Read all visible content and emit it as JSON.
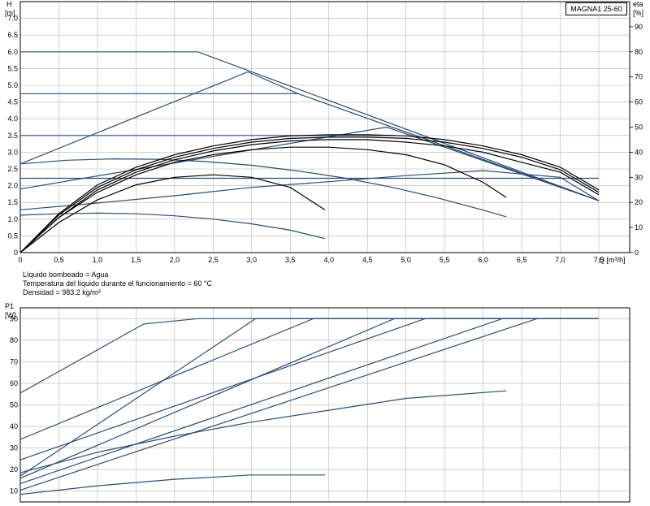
{
  "model": "MAGNA1 25-60",
  "info": [
    "Líquido bombeado = Agua",
    "Temperatura del líquido durante el funcionamiento = 60 °C",
    "Densidad = 983.2 kg/m³"
  ],
  "colors": {
    "curve": "#2a4d73",
    "eff": "#000000",
    "grid": "#b4b4b4",
    "axis": "#000000"
  },
  "chart_data": [
    {
      "type": "line",
      "title": "",
      "xlabel": "Q [m³/h]",
      "ylabel_line1": "H",
      "ylabel_line2": "[m]",
      "y2label_line1": "eta",
      "y2label_line2": "[%]",
      "xlim": [
        0,
        7.9
      ],
      "ylim": [
        0,
        7.5
      ],
      "y2lim": [
        0,
        100
      ],
      "grid": true,
      "xticks": [
        "0",
        "0,5",
        "1,0",
        "1,5",
        "2,0",
        "2,5",
        "3,0",
        "3,5",
        "4,0",
        "4,5",
        "5,0",
        "5,5",
        "6,0",
        "6,5",
        "7,0",
        "7,5"
      ],
      "xtick_values": [
        0,
        0.5,
        1,
        1.5,
        2,
        2.5,
        3,
        3.5,
        4,
        4.5,
        5,
        5.5,
        6,
        6.5,
        7,
        7.5
      ],
      "yticks": [
        "0",
        "0.5",
        "1.0",
        "1.5",
        "2.0",
        "2.5",
        "3.0",
        "3.5",
        "4.0",
        "4.5",
        "5.0",
        "5.5",
        "6.0",
        "6.5",
        "7.0"
      ],
      "ytick_values": [
        0,
        0.5,
        1,
        1.5,
        2,
        2.5,
        3,
        3.5,
        4,
        4.5,
        5,
        5.5,
        6,
        6.5,
        7
      ],
      "y2ticks": [
        "0",
        "10",
        "20",
        "30",
        "40",
        "50",
        "60",
        "70",
        "80",
        "90"
      ],
      "y2tick_values": [
        0,
        10,
        20,
        30,
        40,
        50,
        60,
        70,
        80,
        90
      ],
      "head_series": [
        {
          "x": [
            0,
            2.3,
            7.5
          ],
          "y": [
            6.0,
            6.0,
            1.55
          ]
        },
        {
          "x": [
            0,
            2.95,
            3.6,
            7.5
          ],
          "y": [
            2.65,
            5.4,
            4.75,
            1.55
          ]
        },
        {
          "x": [
            0,
            3.6
          ],
          "y": [
            4.75,
            4.75
          ]
        },
        {
          "x": [
            0,
            4.75,
            7.5
          ],
          "y": [
            1.9,
            3.75,
            1.55
          ]
        },
        {
          "x": [
            0,
            4.85
          ],
          "y": [
            3.5,
            3.5
          ]
        },
        {
          "x": [
            0,
            7.5
          ],
          "y": [
            2.22,
            2.22
          ]
        },
        {
          "x": [
            0,
            0.6,
            1.2,
            1.8,
            2.4,
            3.0,
            3.6,
            4.2,
            4.8,
            5.4,
            6.0,
            6.3
          ],
          "y": [
            2.65,
            2.76,
            2.8,
            2.79,
            2.72,
            2.61,
            2.44,
            2.23,
            1.96,
            1.64,
            1.27,
            1.07
          ]
        },
        {
          "x": [
            0,
            0.5,
            1.0,
            1.5,
            2.0,
            2.5,
            3.0,
            3.5,
            3.95
          ],
          "y": [
            1.12,
            1.16,
            1.18,
            1.16,
            1.1,
            1.0,
            0.86,
            0.67,
            0.42
          ]
        },
        {
          "x": [
            0,
            1.0,
            2.0,
            3.0,
            4.0,
            5.0,
            6.0,
            7.0,
            7.5
          ],
          "y": [
            1.28,
            1.48,
            1.7,
            1.95,
            2.12,
            2.3,
            2.45,
            2.25,
            1.55
          ]
        }
      ],
      "eff_series": [
        {
          "x": [
            0,
            0.5,
            1.0,
            1.5,
            2.0,
            2.5,
            3.0,
            3.5,
            3.95
          ],
          "eta": [
            0,
            12,
            21,
            27,
            30,
            31,
            30,
            26,
            17
          ]
        },
        {
          "x": [
            0,
            0.5,
            1.0,
            1.5,
            2.0,
            2.5,
            3.0,
            3.5,
            4.0,
            4.5,
            5.0,
            5.5,
            6.0,
            6.3
          ],
          "eta": [
            0,
            14,
            24,
            31,
            36,
            39,
            41,
            42,
            42,
            41,
            39,
            35,
            28,
            22
          ]
        },
        {
          "x": [
            0,
            0.5,
            1.0,
            1.5,
            2.0,
            2.5,
            3.0,
            3.5,
            4.0,
            4.5,
            5.0,
            5.5,
            6.0,
            6.5,
            7.0,
            7.5
          ],
          "eta": [
            0,
            14,
            25,
            32,
            37,
            40.5,
            43,
            44.5,
            45,
            45,
            44,
            42.5,
            40,
            36,
            32,
            23
          ]
        },
        {
          "x": [
            0,
            0.5,
            1.0,
            1.5,
            2.0,
            2.5,
            3.0,
            3.5,
            4.0,
            4.5,
            5.0,
            5.5,
            6.0,
            6.5,
            7.0,
            7.5
          ],
          "eta": [
            0,
            15,
            26,
            33,
            38,
            41.5,
            44,
            45.5,
            46,
            46,
            45.5,
            44,
            41.5,
            38,
            33,
            24
          ]
        },
        {
          "x": [
            0,
            0.5,
            1.0,
            1.5,
            2.0,
            2.5,
            3.0,
            3.5,
            4.0,
            4.5,
            5.0,
            5.5,
            6.0,
            6.5,
            7.0,
            7.5
          ],
          "eta": [
            0,
            15.5,
            27,
            34,
            39,
            42.5,
            45,
            46.5,
            47,
            47,
            46.5,
            45,
            42.5,
            39,
            34,
            25
          ]
        }
      ]
    },
    {
      "type": "line",
      "title": "",
      "ylabel_line1": "P1",
      "ylabel_line2": "[W]",
      "xlim": [
        0,
        7.9
      ],
      "ylim": [
        5,
        95
      ],
      "grid": true,
      "yticks": [
        "10",
        "20",
        "30",
        "40",
        "50",
        "60",
        "70",
        "80",
        "90"
      ],
      "ytick_values": [
        10,
        20,
        30,
        40,
        50,
        60,
        70,
        80,
        90
      ],
      "series": [
        {
          "x": [
            0,
            1.6,
            2.3,
            7.5
          ],
          "y": [
            55.5,
            87.5,
            90,
            90
          ]
        },
        {
          "x": [
            0,
            3.05,
            7.5
          ],
          "y": [
            17,
            90,
            90
          ]
        },
        {
          "x": [
            0,
            3.8,
            7.5
          ],
          "y": [
            34,
            90,
            90
          ]
        },
        {
          "x": [
            0,
            4.85,
            7.5
          ],
          "y": [
            16,
            90,
            90
          ]
        },
        {
          "x": [
            0,
            5.25,
            7.5
          ],
          "y": [
            24.5,
            90,
            90
          ]
        },
        {
          "x": [
            0,
            6.25,
            7.5
          ],
          "y": [
            13.5,
            90,
            90
          ]
        },
        {
          "x": [
            0,
            6.7,
            7.5
          ],
          "y": [
            10.5,
            90,
            90
          ]
        },
        {
          "x": [
            0,
            1.0,
            2.0,
            3.0,
            4.0,
            5.0,
            6.3
          ],
          "y": [
            18.5,
            28,
            35.5,
            42,
            47.5,
            53,
            56.5
          ]
        },
        {
          "x": [
            0,
            1.0,
            2.0,
            3.0,
            3.95
          ],
          "y": [
            8.5,
            12.5,
            15.5,
            17.5,
            17.5
          ]
        }
      ]
    }
  ]
}
